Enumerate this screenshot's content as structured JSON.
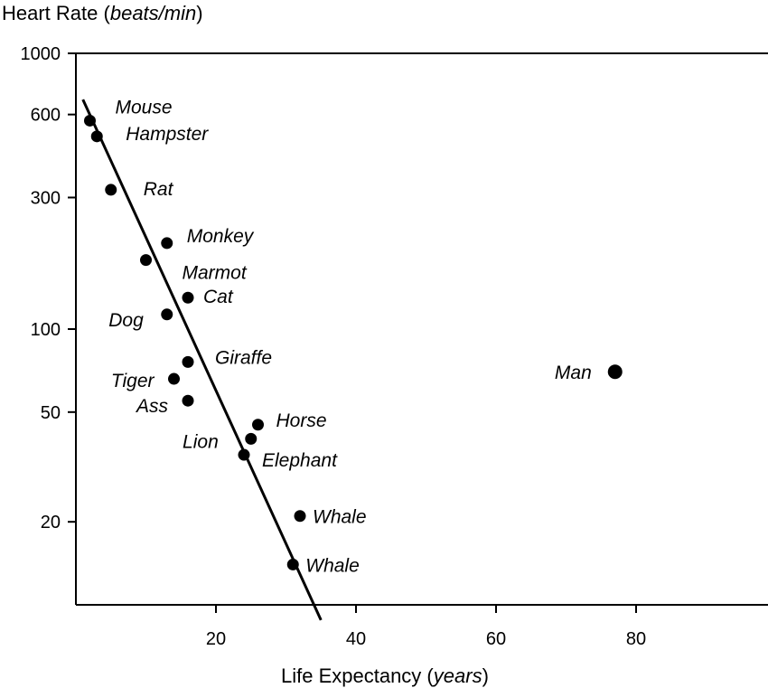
{
  "chart_data": {
    "type": "scatter",
    "title": "Heart Rate",
    "title_unit": "beats/min",
    "xlabel": "Life Expectancy",
    "xlabel_unit": "years",
    "x_axis": {
      "min": 0,
      "max": 100,
      "ticks": [
        20,
        40,
        60,
        80
      ]
    },
    "y_axis": {
      "scale": "log",
      "min": 10,
      "max": 1000,
      "ticks": [
        20,
        50,
        100,
        300,
        600,
        1000
      ]
    },
    "points": [
      {
        "label": "Mouse",
        "x": 2,
        "y": 570
      },
      {
        "label": "Hampster",
        "x": 3,
        "y": 500
      },
      {
        "label": "Rat",
        "x": 5,
        "y": 320
      },
      {
        "label": "Monkey",
        "x": 13,
        "y": 205
      },
      {
        "label": "Marmot",
        "x": 10,
        "y": 178
      },
      {
        "label": "Cat",
        "x": 16,
        "y": 130
      },
      {
        "label": "Dog",
        "x": 13,
        "y": 113
      },
      {
        "label": "Giraffe",
        "x": 16,
        "y": 76
      },
      {
        "label": "Tiger",
        "x": 14,
        "y": 66
      },
      {
        "label": "Ass",
        "x": 16,
        "y": 55
      },
      {
        "label": "Horse",
        "x": 26,
        "y": 45
      },
      {
        "label": "Lion",
        "x": 25,
        "y": 40
      },
      {
        "label": "Elephant",
        "x": 24,
        "y": 35
      },
      {
        "label": "Whale",
        "x": 32,
        "y": 21
      },
      {
        "label": "Whale",
        "x": 31,
        "y": 14
      },
      {
        "label": "Man",
        "x": 77,
        "y": 70
      }
    ],
    "regression_line": {
      "x": [
        1,
        35
      ],
      "y": [
        680,
        8.8
      ]
    },
    "grid": false
  }
}
